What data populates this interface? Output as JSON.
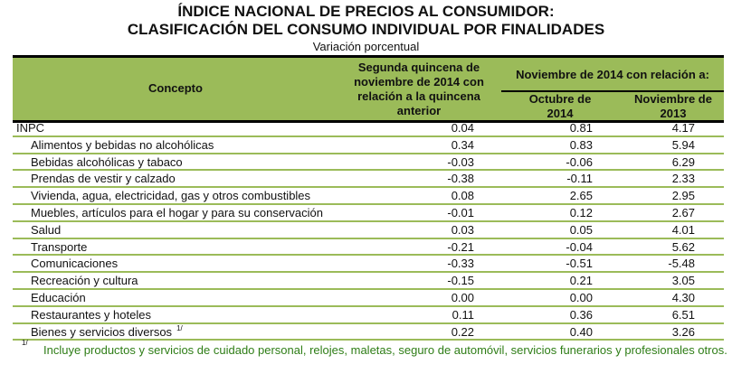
{
  "title_line1": "ÍNDICE NACIONAL DE PRECIOS AL CONSUMIDOR:",
  "title_line2": "CLASIFICACIÓN DEL CONSUMO INDIVIDUAL POR FINALIDADES",
  "subtitle": "Variación porcentual",
  "headers": {
    "concept": "Concepto",
    "col1": "Segunda quincena de noviembre de 2014 con relación a la quincena anterior",
    "group": "Noviembre de  2014 con relación a:",
    "col2": "Octubre de 2014",
    "col3": "Noviembre de 2013"
  },
  "rows": [
    {
      "label": "INPC",
      "v1": "0.04",
      "v2": "0.81",
      "v3": "4.17"
    },
    {
      "label": "Alimentos y bebidas no alcohólicas",
      "v1": "0.34",
      "v2": "0.83",
      "v3": "5.94"
    },
    {
      "label": "Bebidas alcohólicas y tabaco",
      "v1": "-0.03",
      "v2": "-0.06",
      "v3": "6.29"
    },
    {
      "label": "Prendas de vestir y calzado",
      "v1": "-0.38",
      "v2": "-0.11",
      "v3": "2.33"
    },
    {
      "label": "Vivienda, agua, electricidad, gas y otros combustibles",
      "v1": "0.08",
      "v2": "2.65",
      "v3": "2.95"
    },
    {
      "label": "Muebles, artículos para el hogar y para su conservación",
      "v1": "-0.01",
      "v2": "0.12",
      "v3": "2.67"
    },
    {
      "label": "Salud",
      "v1": "0.03",
      "v2": "0.05",
      "v3": "4.01"
    },
    {
      "label": "Transporte",
      "v1": "-0.21",
      "v2": "-0.04",
      "v3": "5.62"
    },
    {
      "label": "Comunicaciones",
      "v1": "-0.33",
      "v2": "-0.51",
      "v3": "-5.48"
    },
    {
      "label": "Recreación y cultura",
      "v1": "-0.15",
      "v2": "0.21",
      "v3": "3.05"
    },
    {
      "label": "Educación",
      "v1": "0.00",
      "v2": "0.00",
      "v3": "4.30"
    },
    {
      "label": "Restaurantes y hoteles",
      "v1": "0.11",
      "v2": "0.36",
      "v3": "6.51"
    },
    {
      "label": "Bienes y servicios diversos",
      "note": "1/",
      "v1": "0.22",
      "v2": "0.40",
      "v3": "3.26"
    }
  ],
  "footnote": {
    "mark": "1/",
    "text": "Incluye productos y servicios de cuidado personal, relojes, maletas, seguro de automóvil, servicios funerarios y profesionales otros."
  }
}
